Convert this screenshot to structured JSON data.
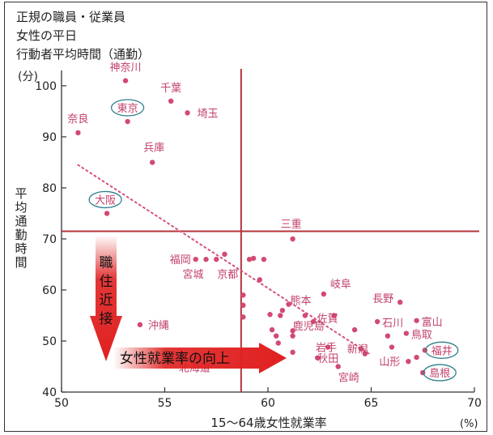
{
  "chart_data": {
    "type": "scatter",
    "title_lines": [
      "正規の職員・従業員",
      "女性の平日",
      "行動者平均時間（通勤）"
    ],
    "y_unit": "(分)",
    "ylabel": "平均通勤時間",
    "xlabel": "15～64歳女性就業率",
    "x_unit": "(%)",
    "xlim": [
      50,
      70
    ],
    "ylim": [
      40,
      103
    ],
    "x_ticks": [
      50,
      55,
      60,
      65,
      70
    ],
    "y_ticks": [
      40,
      50,
      60,
      70,
      80,
      90,
      100
    ],
    "reference_lines": {
      "x": 58.7,
      "y": 71.5
    },
    "trend_line": {
      "x": [
        50.8,
        64.9
      ],
      "y": [
        84.5,
        47.5
      ]
    },
    "points": [
      {
        "label": "神奈川",
        "x": 53.1,
        "y": 101.0
      },
      {
        "label": "千葉",
        "x": 55.3,
        "y": 97.0
      },
      {
        "label": "埼玉",
        "x": 56.1,
        "y": 94.7
      },
      {
        "label": "東京",
        "x": 53.2,
        "y": 93.0,
        "circled": true
      },
      {
        "label": "奈良",
        "x": 50.8,
        "y": 90.8
      },
      {
        "label": "兵庫",
        "x": 54.4,
        "y": 85.0
      },
      {
        "label": "大阪",
        "x": 52.2,
        "y": 75.0,
        "circled": true
      },
      {
        "label": "三重",
        "x": 61.2,
        "y": 70.0
      },
      {
        "label": "福岡",
        "x": 56.5,
        "y": 66.0
      },
      {
        "label": "宮城",
        "x": 57.0,
        "y": 66.0
      },
      {
        "label": "京都",
        "x": 57.5,
        "y": 66.0
      },
      {
        "label": "",
        "x": 57.9,
        "y": 67.0
      },
      {
        "label": "",
        "x": 59.1,
        "y": 66.0
      },
      {
        "label": "",
        "x": 59.3,
        "y": 66.2
      },
      {
        "label": "",
        "x": 59.8,
        "y": 66.0
      },
      {
        "label": "",
        "x": 59.6,
        "y": 62.0
      },
      {
        "label": "",
        "x": 58.8,
        "y": 59.0
      },
      {
        "label": "",
        "x": 58.8,
        "y": 57.0
      },
      {
        "label": "",
        "x": 58.8,
        "y": 54.7
      },
      {
        "label": "岐阜",
        "x": 62.7,
        "y": 59.2
      },
      {
        "label": "長野",
        "x": 66.4,
        "y": 57.6
      },
      {
        "label": "熊本",
        "x": 61.0,
        "y": 57.2
      },
      {
        "label": "",
        "x": 60.7,
        "y": 56.0
      },
      {
        "label": "",
        "x": 60.1,
        "y": 55.2
      },
      {
        "label": "",
        "x": 60.6,
        "y": 55.0
      },
      {
        "label": "",
        "x": 61.8,
        "y": 55.0
      },
      {
        "label": "佐賀",
        "x": 63.2,
        "y": 55.0
      },
      {
        "label": "鹿児島",
        "x": 62.2,
        "y": 53.8
      },
      {
        "label": "石川",
        "x": 65.3,
        "y": 53.8
      },
      {
        "label": "富山",
        "x": 67.2,
        "y": 54.0
      },
      {
        "label": "",
        "x": 60.2,
        "y": 52.2
      },
      {
        "label": "",
        "x": 61.2,
        "y": 52.0
      },
      {
        "label": "",
        "x": 61.2,
        "y": 51.0
      },
      {
        "label": "",
        "x": 60.4,
        "y": 51.0
      },
      {
        "label": "",
        "x": 64.2,
        "y": 52.2
      },
      {
        "label": "",
        "x": 65.8,
        "y": 51.0
      },
      {
        "label": "鳥取",
        "x": 66.7,
        "y": 51.5
      },
      {
        "label": "",
        "x": 66.0,
        "y": 48.8
      },
      {
        "label": "福井",
        "x": 67.6,
        "y": 48.2,
        "circled": true
      },
      {
        "label": "岩手",
        "x": 62.9,
        "y": 48.8
      },
      {
        "label": "新潟",
        "x": 64.5,
        "y": 48.5
      },
      {
        "label": "",
        "x": 61.2,
        "y": 47.8
      },
      {
        "label": "",
        "x": 60.5,
        "y": 49.6
      },
      {
        "label": "",
        "x": 64.7,
        "y": 47.5
      },
      {
        "label": "秋田",
        "x": 62.4,
        "y": 46.7
      },
      {
        "label": "山形",
        "x": 66.8,
        "y": 46.0
      },
      {
        "label": "",
        "x": 67.2,
        "y": 46.8
      },
      {
        "label": "宮崎",
        "x": 63.4,
        "y": 45.0
      },
      {
        "label": "島根",
        "x": 67.5,
        "y": 43.8,
        "circled": true
      },
      {
        "label": "沖縄",
        "x": 53.8,
        "y": 53.2
      },
      {
        "label": "北海道",
        "x": 56.6,
        "y": 46.6
      }
    ],
    "annotations": [
      {
        "text": "職住近接",
        "type": "arrow-down"
      },
      {
        "text": "女性就業率の向上",
        "type": "arrow-right"
      }
    ]
  }
}
